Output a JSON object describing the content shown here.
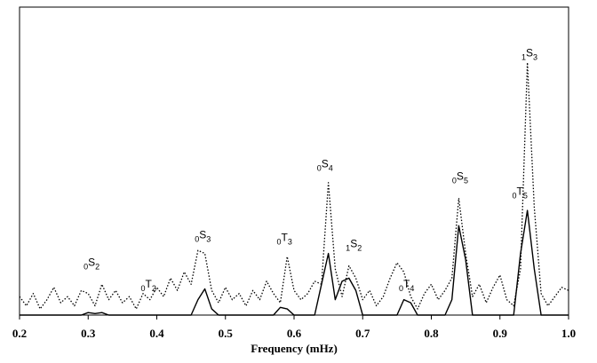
{
  "chart_data": {
    "type": "line",
    "xlabel": "Frequency (mHz)",
    "x": [
      0.2,
      0.21,
      0.22,
      0.23,
      0.24,
      0.25,
      0.26,
      0.27,
      0.28,
      0.29,
      0.3,
      0.31,
      0.32,
      0.33,
      0.34,
      0.35,
      0.36,
      0.37,
      0.38,
      0.39,
      0.4,
      0.41,
      0.42,
      0.43,
      0.44,
      0.45,
      0.46,
      0.47,
      0.48,
      0.49,
      0.5,
      0.51,
      0.52,
      0.53,
      0.54,
      0.55,
      0.56,
      0.57,
      0.58,
      0.59,
      0.6,
      0.61,
      0.62,
      0.63,
      0.64,
      0.65,
      0.66,
      0.67,
      0.68,
      0.69,
      0.7,
      0.71,
      0.72,
      0.73,
      0.74,
      0.75,
      0.76,
      0.77,
      0.78,
      0.79,
      0.8,
      0.81,
      0.82,
      0.83,
      0.84,
      0.85,
      0.86,
      0.87,
      0.88,
      0.89,
      0.9,
      0.91,
      0.92,
      0.93,
      0.94,
      0.95,
      0.96,
      0.97,
      0.98,
      0.99,
      1
    ],
    "series": [
      {
        "color": "#000000",
        "dash": true,
        "values": [
          0.06,
          0.03,
          0.07,
          0.02,
          0.05,
          0.09,
          0.04,
          0.06,
          0.03,
          0.08,
          0.07,
          0.03,
          0.1,
          0.05,
          0.08,
          0.04,
          0.06,
          0.02,
          0.07,
          0.05,
          0.09,
          0.06,
          0.12,
          0.08,
          0.14,
          0.1,
          0.21,
          0.2,
          0.08,
          0.04,
          0.09,
          0.05,
          0.07,
          0.03,
          0.08,
          0.05,
          0.11,
          0.07,
          0.04,
          0.19,
          0.08,
          0.05,
          0.07,
          0.11,
          0.1,
          0.43,
          0.15,
          0.06,
          0.16,
          0.12,
          0.05,
          0.08,
          0.03,
          0.06,
          0.12,
          0.17,
          0.14,
          0.06,
          0.02,
          0.07,
          0.1,
          0.05,
          0.08,
          0.12,
          0.38,
          0.2,
          0.06,
          0.1,
          0.04,
          0.09,
          0.13,
          0.05,
          0.03,
          0.15,
          0.82,
          0.35,
          0.07,
          0.03,
          0.06,
          0.09,
          0.08
        ]
      },
      {
        "color": "#000000",
        "dash": false,
        "values": [
          0,
          0,
          0,
          0,
          0,
          0,
          0,
          0,
          0,
          0,
          0.008,
          0.005,
          0.008,
          0,
          0,
          0,
          0,
          0,
          0,
          0,
          0,
          0,
          0,
          0,
          0,
          0,
          0.05,
          0.085,
          0.02,
          0,
          0,
          0,
          0,
          0,
          0,
          0,
          0,
          0,
          0.025,
          0.02,
          0,
          0,
          0,
          0,
          0.1,
          0.2,
          0.05,
          0.11,
          0.12,
          0.08,
          0,
          0,
          0,
          0,
          0,
          0,
          0.05,
          0.04,
          0,
          0,
          0,
          0,
          0,
          0.05,
          0.29,
          0.18,
          0,
          0,
          0,
          0,
          0,
          0,
          0,
          0.2,
          0.34,
          0.15,
          0,
          0,
          0,
          0,
          0
        ]
      }
    ],
    "xlim": [
      0.2,
      1
    ],
    "xticks": [
      0.2,
      0.3,
      0.4,
      0.5,
      0.6,
      0.7,
      0.8,
      0.9,
      {
        "value": 1,
        "label": "1.0"
      }
    ],
    "annotations": [
      {
        "prefix": "0",
        "symbol": "S",
        "index": "2",
        "x": 0.305,
        "y": 0.16
      },
      {
        "prefix": "0",
        "symbol": "T",
        "index": "2",
        "x": 0.388,
        "y": 0.09
      },
      {
        "prefix": "0",
        "symbol": "S",
        "index": "3",
        "x": 0.467,
        "y": 0.25
      },
      {
        "prefix": "0",
        "symbol": "T",
        "index": "3",
        "x": 0.586,
        "y": 0.24
      },
      {
        "prefix": "0",
        "symbol": "S",
        "index": "4",
        "x": 0.645,
        "y": 0.48
      },
      {
        "prefix": "1",
        "symbol": "S",
        "index": "2",
        "x": 0.687,
        "y": 0.22
      },
      {
        "prefix": "0",
        "symbol": "T",
        "index": "4",
        "x": 0.764,
        "y": 0.09
      },
      {
        "prefix": "0",
        "symbol": "S",
        "index": "5",
        "x": 0.842,
        "y": 0.44
      },
      {
        "prefix": "0",
        "symbol": "T",
        "index": "5",
        "x": 0.929,
        "y": 0.39
      },
      {
        "prefix": "1",
        "symbol": "S",
        "index": "3",
        "x": 0.943,
        "y": 0.84
      }
    ]
  }
}
